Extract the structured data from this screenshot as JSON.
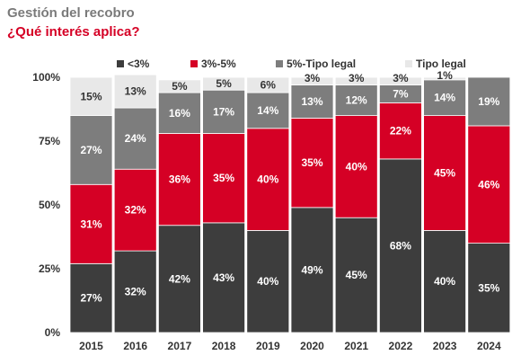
{
  "chart_data": {
    "type": "bar",
    "title": "Gestión del recobro",
    "subtitle": "¿Qué interés aplica?",
    "categories": [
      "2015",
      "2016",
      "2017",
      "2018",
      "2019",
      "2020",
      "2021",
      "2022",
      "2023",
      "2024"
    ],
    "stacked": true,
    "ylim": [
      0,
      100
    ],
    "y_ticks": [
      0,
      25,
      50,
      75,
      100
    ],
    "y_tick_labels": [
      "0%",
      "25%",
      "50%",
      "75%",
      "100%"
    ],
    "grid": false,
    "legend_position": "top-right",
    "series": [
      {
        "name": "<3%",
        "color": "#3d3d3d",
        "label_color": "#ffffff",
        "values": [
          27,
          32,
          42,
          43,
          40,
          49,
          45,
          68,
          40,
          35
        ],
        "labels": [
          "27%",
          "32%",
          "42%",
          "43%",
          "40%",
          "49%",
          "45%",
          "68%",
          "40%",
          "35%"
        ]
      },
      {
        "name": "3%-5%",
        "color": "#d50025",
        "label_color": "#ffffff",
        "values": [
          31,
          32,
          36,
          35,
          40,
          35,
          40,
          22,
          45,
          46
        ],
        "labels": [
          "31%",
          "32%",
          "36%",
          "35%",
          "40%",
          "35%",
          "40%",
          "22%",
          "45%",
          "46%"
        ]
      },
      {
        "name": "5%-Tipo legal",
        "color": "#7d7d7d",
        "label_color": "#ffffff",
        "values": [
          27,
          24,
          16,
          17,
          14,
          13,
          12,
          7,
          14,
          19
        ],
        "labels": [
          "27%",
          "24%",
          "16%",
          "17%",
          "14%",
          "13%",
          "12%",
          "7%",
          "14%",
          "19%"
        ]
      },
      {
        "name": "Tipo legal",
        "color": "#e8e8e8",
        "label_color": "#333333",
        "values": [
          15,
          13,
          5,
          5,
          6,
          3,
          3,
          3,
          1,
          0
        ],
        "labels": [
          "15%",
          "13%",
          "5%",
          "5%",
          "6%",
          "3%",
          "3%",
          "3%",
          "1%",
          ""
        ]
      }
    ]
  }
}
